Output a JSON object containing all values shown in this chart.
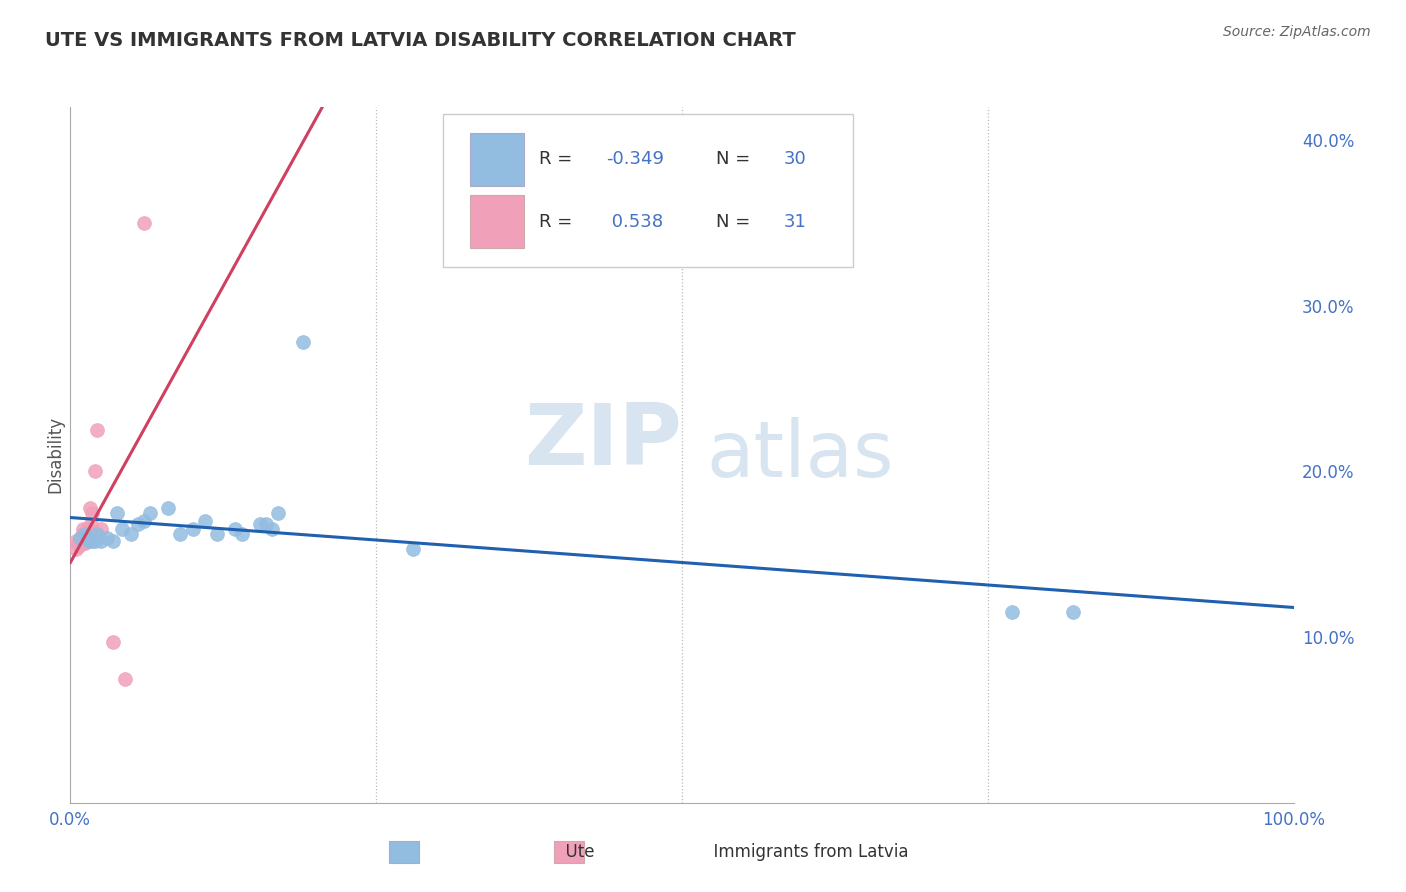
{
  "title": "UTE VS IMMIGRANTS FROM LATVIA DISABILITY CORRELATION CHART",
  "source": "Source: ZipAtlas.com",
  "ylabel": "Disability",
  "xlim": [
    0.0,
    1.0
  ],
  "ylim": [
    0.0,
    0.42
  ],
  "ytick_vals": [
    0.1,
    0.2,
    0.3,
    0.4
  ],
  "ytick_labels": [
    "10.0%",
    "20.0%",
    "30.0%",
    "40.0%"
  ],
  "ute_color": "#92bce0",
  "latvia_color": "#f0a0b8",
  "trend_ute_color": "#2060b0",
  "trend_latvia_color": "#d04060",
  "watermark_ZIP": "ZIP",
  "watermark_atlas": "atlas",
  "ute_x": [
    0.008,
    0.012,
    0.015,
    0.018,
    0.02,
    0.022,
    0.025,
    0.03,
    0.035,
    0.038,
    0.042,
    0.05,
    0.055,
    0.06,
    0.065,
    0.08,
    0.09,
    0.1,
    0.11,
    0.12,
    0.135,
    0.14,
    0.155,
    0.16,
    0.165,
    0.17,
    0.19,
    0.28,
    0.77,
    0.82
  ],
  "ute_y": [
    0.16,
    0.162,
    0.158,
    0.158,
    0.158,
    0.162,
    0.158,
    0.16,
    0.158,
    0.175,
    0.165,
    0.162,
    0.168,
    0.17,
    0.175,
    0.178,
    0.162,
    0.165,
    0.17,
    0.162,
    0.165,
    0.162,
    0.168,
    0.168,
    0.165,
    0.175,
    0.278,
    0.153,
    0.115,
    0.115
  ],
  "latvia_x": [
    0.005,
    0.005,
    0.006,
    0.007,
    0.007,
    0.008,
    0.008,
    0.009,
    0.01,
    0.01,
    0.01,
    0.01,
    0.011,
    0.012,
    0.012,
    0.013,
    0.013,
    0.014,
    0.014,
    0.015,
    0.015,
    0.016,
    0.016,
    0.017,
    0.018,
    0.02,
    0.022,
    0.025,
    0.035,
    0.045,
    0.06
  ],
  "latvia_y": [
    0.153,
    0.158,
    0.157,
    0.155,
    0.157,
    0.156,
    0.158,
    0.158,
    0.157,
    0.162,
    0.162,
    0.165,
    0.162,
    0.157,
    0.162,
    0.16,
    0.158,
    0.162,
    0.165,
    0.162,
    0.165,
    0.162,
    0.178,
    0.168,
    0.175,
    0.2,
    0.225,
    0.165,
    0.097,
    0.075,
    0.35
  ]
}
